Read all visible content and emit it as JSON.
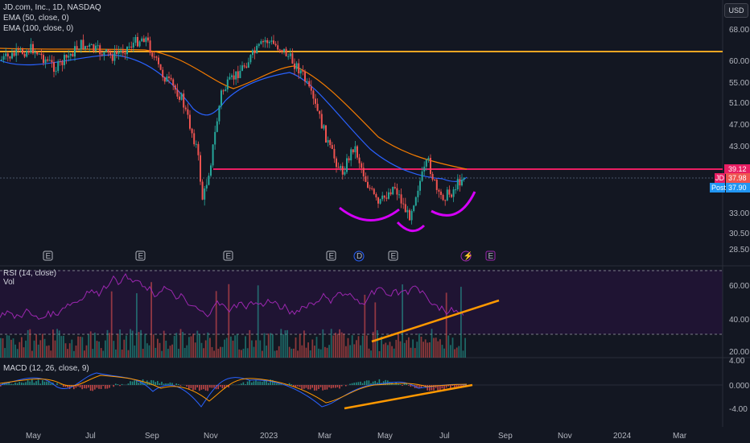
{
  "header": {
    "symbol_line": "JD.com, Inc., 1D, NASDAQ",
    "ema50_label": "EMA (50, close, 0)",
    "ema100_label": "EMA (100, close, 0)",
    "currency_button": "USD"
  },
  "colors": {
    "background": "#131722",
    "up": "#26a69a",
    "down": "#ef5350",
    "ema50": "#2962ff",
    "ema100": "#f57c00",
    "resistance_top": "#f5a623",
    "neckline": "#e91e63",
    "shoulders": "#d500f9",
    "rsi_line": "#9c27b0",
    "trend": "#ff9800"
  },
  "chart_data": [
    {
      "type": "candlestick",
      "title": "JD.com, Inc., 1D, NASDAQ",
      "currency": "USD",
      "x_ticks": [
        "May",
        "Jul",
        "Sep",
        "Nov",
        "2023",
        "Mar",
        "May",
        "Jul",
        "Sep",
        "Nov",
        "2024",
        "Mar"
      ],
      "y_ticks": [
        "68.00",
        "60.00",
        "55.00",
        "51.00",
        "47.00",
        "43.00",
        "33.00",
        "30.50",
        "28.50"
      ],
      "price_tags": [
        {
          "label": "39.12",
          "color": "#e91e63"
        },
        {
          "label": "JD",
          "color": "#e91e63"
        },
        {
          "label": "37.98",
          "color": "#ef5350"
        },
        {
          "label": "Post",
          "color": "#2196f3"
        },
        {
          "label": "37.90",
          "color": "#2196f3"
        }
      ],
      "path_points": [
        {
          "x": "Apr",
          "y": 60
        },
        {
          "x": "May",
          "y": 63
        },
        {
          "x": "Jun",
          "y": 60
        },
        {
          "x": "Jul",
          "y": 62
        },
        {
          "x": "Aug",
          "y": 61
        },
        {
          "x": "Sep",
          "y": 62
        },
        {
          "x": "Sep",
          "y": 58
        },
        {
          "x": "Oct",
          "y": 50
        },
        {
          "x": "Nov",
          "y": 34
        },
        {
          "x": "Nov",
          "y": 47
        },
        {
          "x": "Dec",
          "y": 55
        },
        {
          "x": "2023",
          "y": 63
        },
        {
          "x": "Feb",
          "y": 58
        },
        {
          "x": "Mar",
          "y": 48
        },
        {
          "x": "Apr",
          "y": 40
        },
        {
          "x": "May",
          "y": 37
        },
        {
          "x": "Jun",
          "y": 33
        },
        {
          "x": "Jul",
          "y": 38
        },
        {
          "x": "Aug",
          "y": 38
        }
      ],
      "horizontal_levels": [
        {
          "value": 64,
          "color": "#f5a623"
        },
        {
          "value": 39.12,
          "color": "#e91e63"
        }
      ],
      "event_markers": [
        "E",
        "E",
        "E",
        "E",
        "D",
        "E",
        "⚡",
        "E"
      ],
      "legend": [
        "EMA (50, close, 0)",
        "EMA (100, close, 0)"
      ]
    },
    {
      "type": "line",
      "title": "RSI (14, close)",
      "secondary": "Vol",
      "y_ticks": [
        "60.00",
        "40.00",
        "20.00"
      ],
      "bands": [
        70,
        30
      ],
      "trendline": {
        "from": {
          "x": "May",
          "y": 30
        },
        "to": {
          "x": "Sep",
          "y": 52
        }
      }
    },
    {
      "type": "histogram",
      "title": "MACD (12, 26, close, 9)",
      "y_ticks": [
        "4.00",
        "0.000",
        "-4.00"
      ],
      "trendline": {
        "from": {
          "x": "Mar",
          "y": -4
        },
        "to": {
          "x": "Aug",
          "y": 0
        }
      }
    }
  ]
}
